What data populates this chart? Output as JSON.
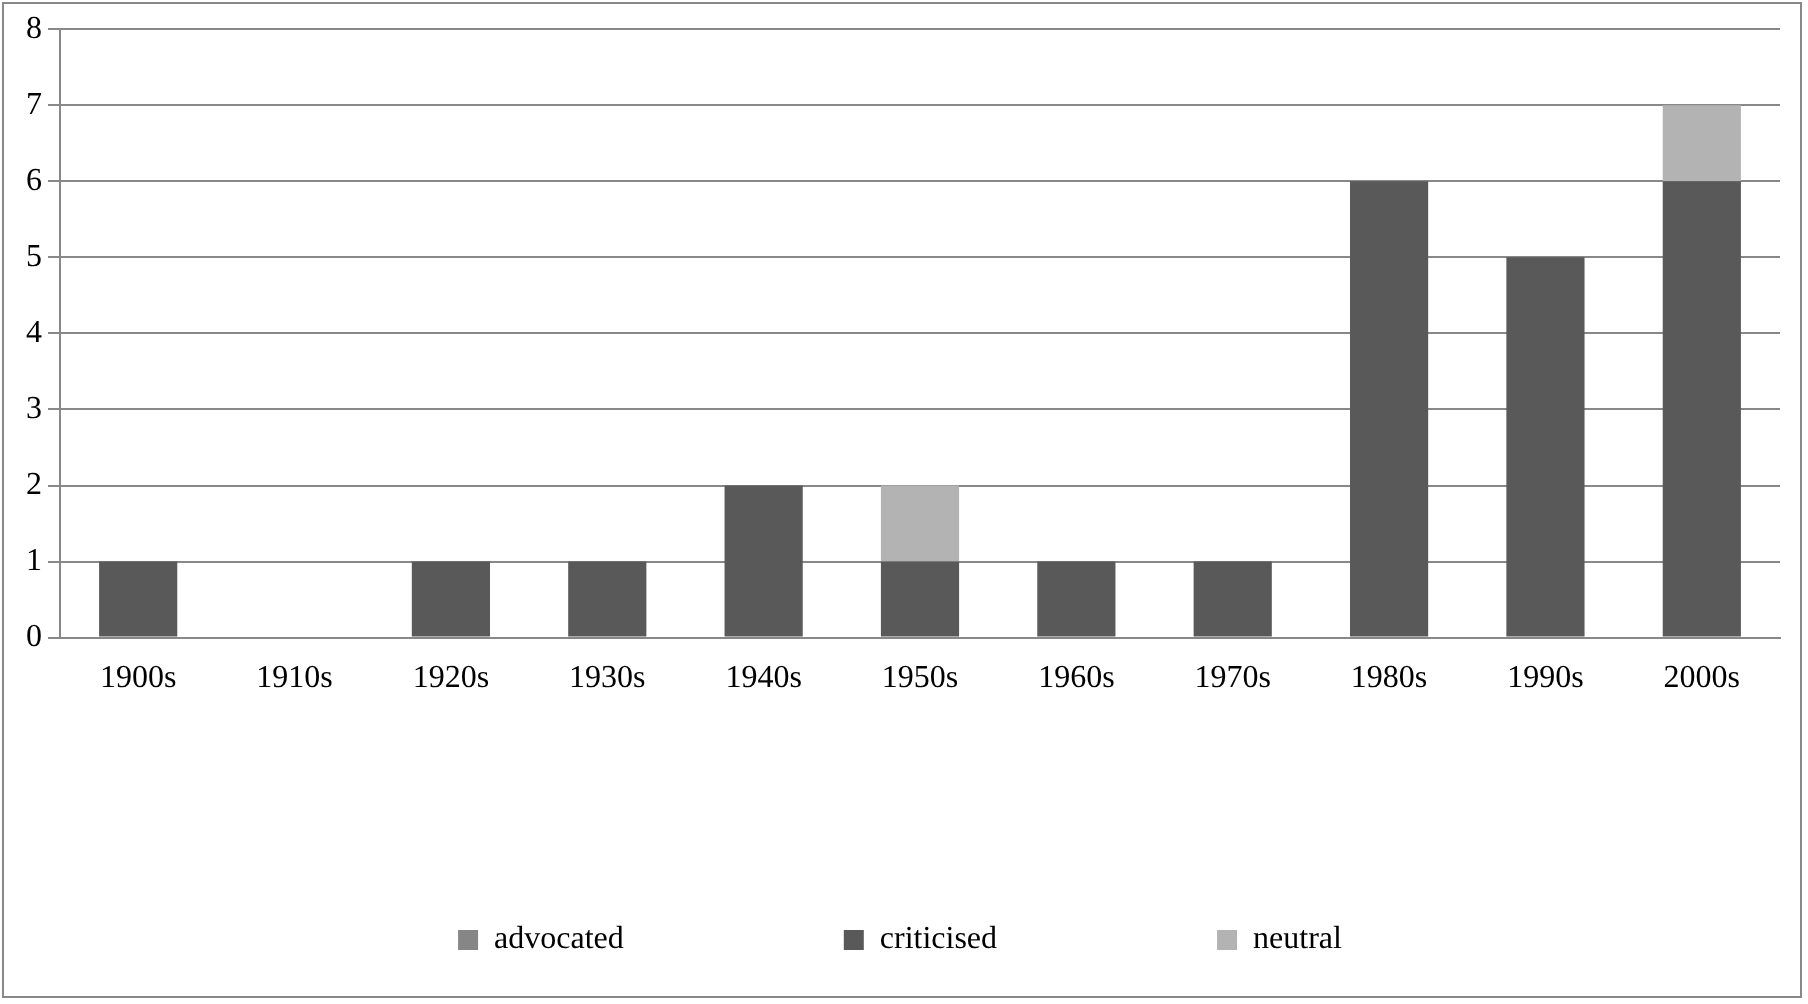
{
  "chart_data": {
    "type": "bar",
    "stacked": true,
    "categories": [
      "1900s",
      "1910s",
      "1920s",
      "1930s",
      "1940s",
      "1950s",
      "1960s",
      "1970s",
      "1980s",
      "1990s",
      "2000s"
    ],
    "series": [
      {
        "name": "advocated",
        "color": "#868686",
        "values": [
          0,
          0,
          0,
          0,
          0,
          0,
          0,
          0,
          0,
          0,
          0
        ]
      },
      {
        "name": "criticised",
        "color": "#595959",
        "values": [
          1,
          0,
          1,
          1,
          2,
          1,
          1,
          1,
          6,
          5,
          6
        ]
      },
      {
        "name": "neutral",
        "color": "#b3b3b3",
        "values": [
          0,
          0,
          0,
          0,
          0,
          1,
          0,
          0,
          0,
          0,
          1
        ]
      }
    ],
    "ylim": [
      0,
      8
    ],
    "yticks": [
      0,
      1,
      2,
      3,
      4,
      5,
      6,
      7,
      8
    ],
    "grid": "y",
    "legend": "bottom"
  }
}
